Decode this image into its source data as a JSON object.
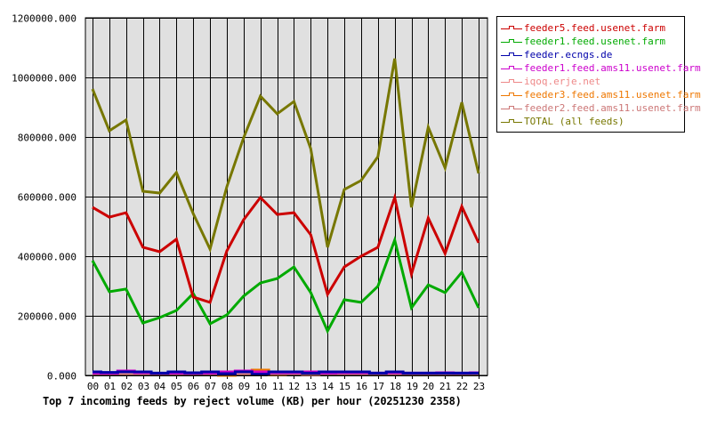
{
  "chart_data": {
    "type": "line",
    "title": "Top 7 incoming feeds by reject volume (KB) per hour (20251230 2358)",
    "xlabel": "",
    "ylabel": "",
    "ylim": [
      0,
      1200000
    ],
    "yticks": [
      "0.000",
      "200000.000",
      "400000.000",
      "600000.000",
      "800000.000",
      "1000000.000",
      "1200000.000"
    ],
    "grid": true,
    "legend_position": "right",
    "categories": [
      "00",
      "01",
      "02",
      "03",
      "04",
      "05",
      "06",
      "07",
      "08",
      "09",
      "10",
      "11",
      "12",
      "13",
      "14",
      "15",
      "16",
      "17",
      "18",
      "19",
      "20",
      "21",
      "22",
      "23"
    ],
    "series": [
      {
        "name": "feeder5.feed.usenet.farm",
        "color": "#cc0000",
        "values": [
          564000,
          531000,
          546000,
          430000,
          415000,
          457000,
          263000,
          245000,
          418000,
          522000,
          597000,
          540000,
          546000,
          472000,
          272000,
          364000,
          400000,
          430000,
          597000,
          340000,
          528000,
          409000,
          567000,
          445000
        ]
      },
      {
        "name": "feeder1.feed.usenet.farm",
        "color": "#00aa00",
        "values": [
          385000,
          281000,
          290000,
          176000,
          194000,
          218000,
          275000,
          173000,
          203000,
          266000,
          310000,
          325000,
          364000,
          278000,
          149000,
          254000,
          245000,
          299000,
          454000,
          227000,
          304000,
          278000,
          346000,
          227000
        ]
      },
      {
        "name": "feeder.ecngs.de",
        "color": "#0000aa",
        "values": [
          12000,
          10000,
          12000,
          12000,
          8000,
          12000,
          9000,
          12000,
          6000,
          12000,
          4000,
          12000,
          12000,
          8000,
          12000,
          12000,
          12000,
          8000,
          12000,
          8000,
          8000,
          8000,
          8000,
          8000
        ]
      },
      {
        "name": "feeder1.feed.ams11.usenet.farm",
        "color": "#cc00cc",
        "values": [
          8000,
          7000,
          15000,
          9000,
          7000,
          8000,
          7000,
          8000,
          12000,
          15000,
          12000,
          9000,
          9000,
          12000,
          8000,
          9000,
          9000,
          8000,
          9000,
          8000,
          8000,
          9000,
          8000,
          9000
        ]
      },
      {
        "name": "iqoq.erje.net",
        "color": "#ee8888",
        "values": [
          4000,
          4000,
          4000,
          4000,
          4000,
          4000,
          4000,
          4000,
          4000,
          4000,
          4000,
          4000,
          4000,
          1000,
          4000,
          4000,
          4000,
          4000,
          4000,
          4000,
          4000,
          4000,
          4000,
          4000
        ]
      },
      {
        "name": "feeder3.feed.ams11.usenet.farm",
        "color": "#ee7700",
        "values": [
          5000,
          5000,
          9000,
          5000,
          5000,
          5000,
          5000,
          6000,
          0,
          14000,
          18000,
          2000,
          5000,
          5000,
          5000,
          5000,
          5000,
          5000,
          11000,
          5000,
          5000,
          5000,
          5000,
          5000
        ]
      },
      {
        "name": "feeder2.feed.ams11.usenet.farm",
        "color": "#cc7777",
        "values": [
          5000,
          5000,
          5000,
          5000,
          5000,
          5000,
          5000,
          5000,
          9000,
          9000,
          9000,
          5000,
          5000,
          5000,
          5000,
          5000,
          5000,
          5000,
          5000,
          5000,
          5000,
          5000,
          5000,
          5000
        ]
      },
      {
        "name": "TOTAL (all feeds)",
        "color": "#777700",
        "values": [
          961000,
          821000,
          857000,
          618000,
          612000,
          681000,
          543000,
          424000,
          633000,
          797000,
          937000,
          878000,
          919000,
          761000,
          430000,
          624000,
          654000,
          734000,
          1063000,
          564000,
          833000,
          696000,
          916000,
          678000
        ]
      }
    ]
  },
  "legend": {
    "items": [
      {
        "label": "feeder5.feed.usenet.farm",
        "color": "#cc0000"
      },
      {
        "label": "feeder1.feed.usenet.farm",
        "color": "#00aa00"
      },
      {
        "label": "feeder.ecngs.de",
        "color": "#0000aa"
      },
      {
        "label": "feeder1.feed.ams11.usenet.farm",
        "color": "#cc00cc"
      },
      {
        "label": "iqoq.erje.net",
        "color": "#ee8888"
      },
      {
        "label": "feeder3.feed.ams11.usenet.farm",
        "color": "#ee7700"
      },
      {
        "label": "feeder2.feed.ams11.usenet.farm",
        "color": "#cc7777"
      },
      {
        "label": "TOTAL (all feeds)",
        "color": "#777700"
      }
    ]
  },
  "colors": {
    "plot_background": "#e0e0e0",
    "grid": "#000000",
    "page_background": "#ffffff"
  }
}
